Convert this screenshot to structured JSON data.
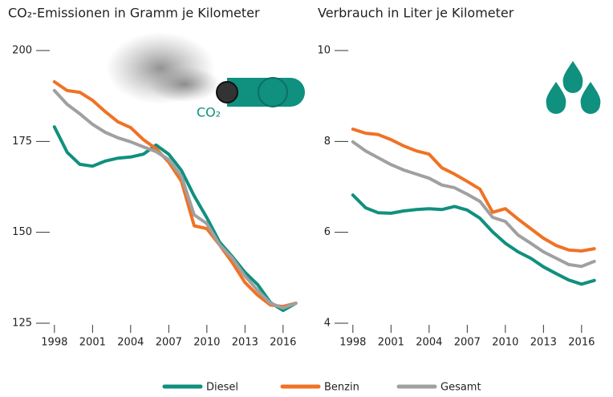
{
  "chart_data": [
    {
      "type": "line",
      "title": "CO₂-Emissionen in Gramm je Kilometer",
      "annotation": "CO₂",
      "x": [
        1998,
        1999,
        2000,
        2001,
        2002,
        2003,
        2004,
        2005,
        2006,
        2007,
        2008,
        2009,
        2010,
        2011,
        2012,
        2013,
        2014,
        2015,
        2016,
        2017
      ],
      "xlim": [
        1997,
        2018
      ],
      "xticks": [
        1998,
        2001,
        2004,
        2007,
        2010,
        2013,
        2016
      ],
      "ylim": [
        125,
        200
      ],
      "yticks": [
        125,
        150,
        175,
        200
      ],
      "series": [
        {
          "name": "Diesel",
          "color": "#10907f",
          "values": [
            179.0,
            172,
            168.7,
            168.2,
            169.6,
            170.4,
            170.7,
            171.5,
            174,
            171.5,
            167,
            160,
            154,
            147.3,
            143.3,
            139,
            135.6,
            130.7,
            128.5,
            130.5
          ]
        },
        {
          "name": "Benzin",
          "color": "#f07224",
          "values": [
            191.4,
            189,
            188.5,
            186.3,
            183.2,
            180.4,
            178.8,
            175.5,
            173,
            169.3,
            164,
            151.8,
            151,
            146.5,
            141.7,
            136.2,
            132.7,
            130,
            129.6,
            130.5
          ]
        },
        {
          "name": "Gesamt",
          "color": "#a0a0a0",
          "values": [
            189,
            185.2,
            182.6,
            179.7,
            177.5,
            176,
            174.9,
            173.5,
            172.2,
            170,
            165.4,
            154.8,
            152.4,
            146.6,
            142.9,
            138,
            134,
            130.5,
            129.2,
            130.5
          ]
        }
      ]
    },
    {
      "type": "line",
      "title": "Verbrauch in Liter je Kilometer",
      "x": [
        1998,
        1999,
        2000,
        2001,
        2002,
        2003,
        2004,
        2005,
        2006,
        2007,
        2008,
        2009,
        2010,
        2011,
        2012,
        2013,
        2014,
        2015,
        2016,
        2017
      ],
      "xlim": [
        1997,
        2018
      ],
      "xticks": [
        1998,
        2001,
        2004,
        2007,
        2010,
        2013,
        2016
      ],
      "ylim": [
        4,
        10
      ],
      "yticks": [
        4,
        6,
        8,
        10
      ],
      "series": [
        {
          "color": "#10907f",
          "values": [
            6.82,
            6.54,
            6.43,
            6.42,
            6.47,
            6.5,
            6.52,
            6.5,
            6.57,
            6.49,
            6.31,
            6.01,
            5.76,
            5.57,
            5.43,
            5.24,
            5.09,
            4.95,
            4.86,
            4.94
          ]
        },
        {
          "color": "#f07224",
          "values": [
            8.27,
            8.18,
            8.15,
            8.04,
            7.9,
            7.79,
            7.72,
            7.42,
            7.28,
            7.12,
            6.95,
            6.44,
            6.52,
            6.29,
            6.08,
            5.87,
            5.71,
            5.61,
            5.59,
            5.64
          ]
        },
        {
          "color": "#a0a0a0",
          "values": [
            7.99,
            7.79,
            7.64,
            7.49,
            7.37,
            7.28,
            7.19,
            7.04,
            6.98,
            6.84,
            6.68,
            6.33,
            6.24,
            5.94,
            5.76,
            5.57,
            5.43,
            5.29,
            5.25,
            5.36
          ]
        }
      ]
    }
  ]
}
